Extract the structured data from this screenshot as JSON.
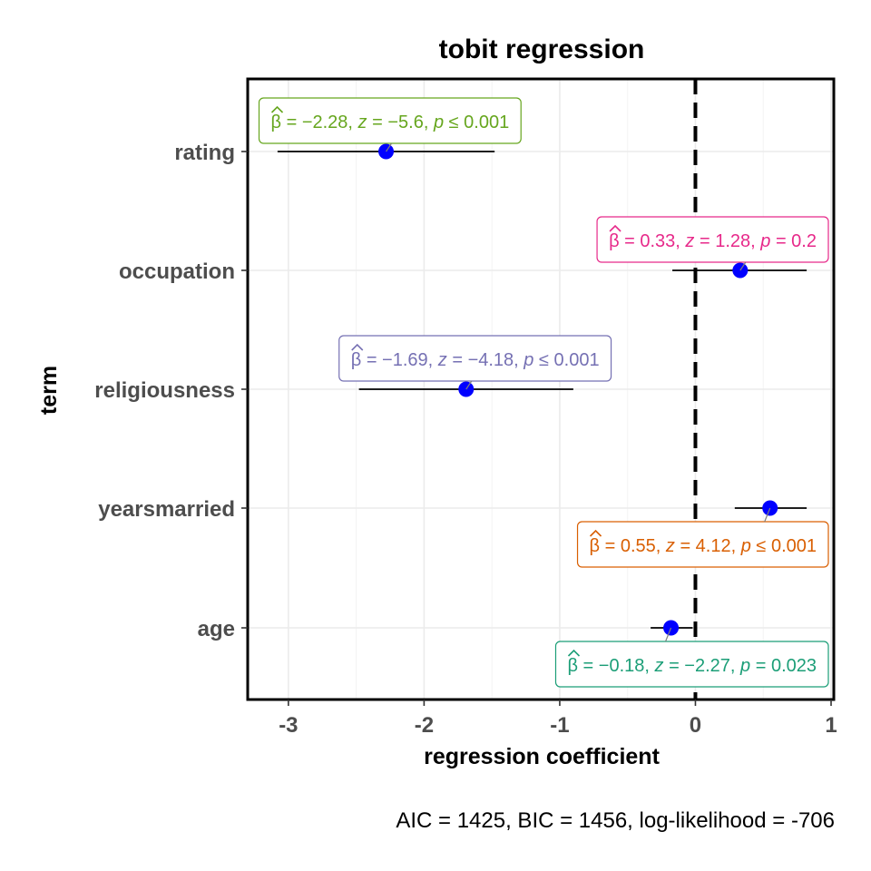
{
  "chart_data": {
    "type": "scatter",
    "subtype": "coefficient-forest-plot",
    "title": "tobit regression",
    "xlabel": "regression coefficient",
    "ylabel": "term",
    "xlim": [
      -3.3,
      1.02
    ],
    "x_ticks": [
      -3,
      -2,
      -1,
      0,
      1
    ],
    "x_tick_labels": [
      "-3",
      "-2",
      "-1",
      "0",
      "1"
    ],
    "reference_line": 0,
    "grid": true,
    "point_color": "#0000ff",
    "terms": [
      "rating",
      "occupation",
      "religiousness",
      "yearsmarried",
      "age"
    ],
    "estimates": [
      -2.28,
      0.33,
      -1.69,
      0.55,
      -0.18
    ],
    "ci_low": [
      -3.08,
      -0.17,
      -2.48,
      0.29,
      -0.33
    ],
    "ci_high": [
      -1.48,
      0.82,
      -0.9,
      0.82,
      -0.02
    ],
    "annotations": [
      {
        "beta": "−2.28",
        "z": "−5.6",
        "p_op": "≤",
        "p": "0.001",
        "color": "#66a61e"
      },
      {
        "beta": "0.33",
        "z": "1.28",
        "p_op": "=",
        "p": "0.2",
        "color": "#e7298a"
      },
      {
        "beta": "−1.69",
        "z": "−4.18",
        "p_op": "≤",
        "p": "0.001",
        "color": "#7570b3"
      },
      {
        "beta": "0.55",
        "z": "4.12",
        "p_op": "≤",
        "p": "0.001",
        "color": "#d95f02"
      },
      {
        "beta": "−0.18",
        "z": "−2.27",
        "p_op": "=",
        "p": "0.023",
        "color": "#1b9e77"
      }
    ],
    "caption": "AIC = 1425, BIC = 1456, log-likelihood = -706"
  }
}
